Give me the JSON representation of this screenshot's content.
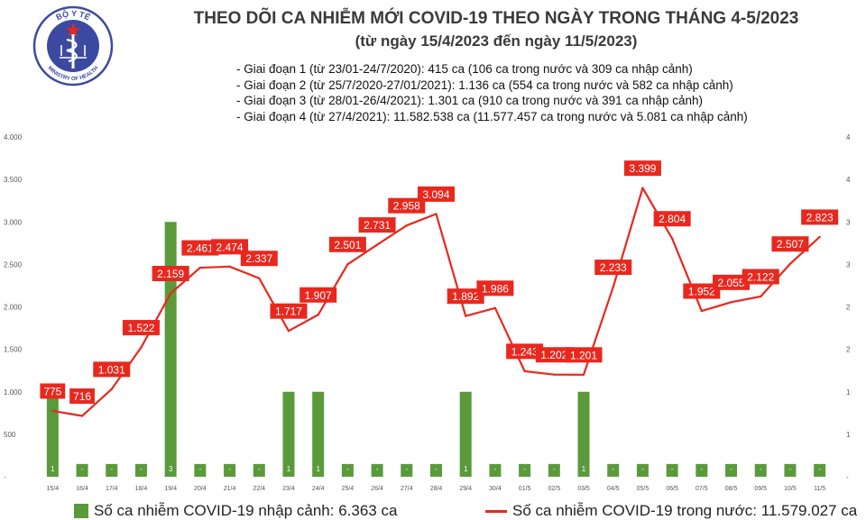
{
  "header": {
    "title": "THEO DÕI CA NHIỄM MỚI COVID-19 THEO NGÀY TRONG THÁNG 4-5/2023",
    "subtitle": "(từ ngày 15/4/2023 đến ngày 11/5/2023)",
    "notes": [
      "- Giai đoạn 1 (từ 23/01-24/7/2020): 415 ca (106 ca trong nước và 309 ca nhập cảnh)",
      "- Giai đoạn 2 (từ 25/7/2020-27/01/2021): 1.136 ca (554 ca trong nước và 582 ca nhập cảnh)",
      "- Giai đoạn 3 (từ 28/01-26/4/2021): 1.301 ca (910 ca trong nước và 391 ca nhập cảnh)",
      "- Giai đoạn 4 (từ 27/4/2021): 11.582.538 ca (11.577.457 ca trong nước và 5.081 ca nhập cảnh)"
    ]
  },
  "logo": {
    "text_top": "BỘ Y TẾ",
    "text_bottom": "MINISTRY OF HEALTH",
    "icon": "ministry-of-health-seal",
    "color": "#3b4aa0"
  },
  "chart_data": {
    "type": "bar+line",
    "categories": [
      "15/4",
      "16/4",
      "17/4",
      "18/4",
      "19/4",
      "20/4",
      "21/4",
      "22/4",
      "23/4",
      "24/4",
      "25/4",
      "26/4",
      "27/4",
      "28/4",
      "29/4",
      "30/4",
      "01/5",
      "02/5",
      "03/5",
      "04/5",
      "05/5",
      "06/5",
      "07/5",
      "08/5",
      "09/5",
      "10/5",
      "11/5"
    ],
    "series": [
      {
        "name": "Số ca nhiễm COVID-19 nhập cảnh: 6.363 ca",
        "type": "bar",
        "axis": "right",
        "color": "#5a9a3b",
        "values": [
          1,
          0,
          0,
          0,
          3,
          0,
          0,
          0,
          1,
          1,
          0,
          0,
          0,
          0,
          1,
          0,
          0,
          0,
          1,
          0,
          0,
          0,
          0,
          0,
          0,
          0,
          0
        ],
        "labels": [
          "1",
          "-",
          "-",
          "-",
          "3",
          "-",
          "-",
          "-",
          "1",
          "1",
          "-",
          "-",
          "-",
          "-",
          "1",
          "-",
          "-",
          "-",
          "1",
          "-",
          "-",
          "-",
          "-",
          "-",
          "-",
          "-",
          "-"
        ]
      },
      {
        "name": "Số ca nhiễm COVID-19 trong nước: 11.579.027 ca",
        "type": "line",
        "axis": "left",
        "color": "#e8281e",
        "values": [
          775,
          716,
          1031,
          1522,
          2159,
          2461,
          2474,
          2337,
          1717,
          1907,
          2501,
          2731,
          2958,
          3094,
          1892,
          1986,
          1243,
          1202,
          1201,
          2233,
          3399,
          2804,
          1952,
          2055,
          2122,
          2507,
          2823
        ],
        "labels": [
          "775",
          "716",
          "1.031",
          "1.522",
          "2.159",
          "2.461",
          "2.474",
          "2.337",
          "1.717",
          "1.907",
          "2.501",
          "2.731",
          "2.958",
          "3.094",
          "1.892",
          "1.986",
          "1.243",
          "1.202",
          "1.201",
          "2.233",
          "3.399",
          "2.804",
          "1.952",
          "2.055",
          "2.122",
          "2.507",
          "2.823"
        ]
      }
    ],
    "y_left": {
      "range": [
        0,
        4000
      ],
      "ticks": [
        "-",
        "500",
        "1.000",
        "1.500",
        "2.000",
        "2.500",
        "3.000",
        "3.500",
        "4.000"
      ]
    },
    "y_right": {
      "range": [
        0,
        4
      ],
      "ticks": [
        "-",
        "1",
        "1",
        "2",
        "2",
        "3",
        "3",
        "4",
        "4"
      ]
    },
    "grid": false,
    "legend": "bottom"
  }
}
